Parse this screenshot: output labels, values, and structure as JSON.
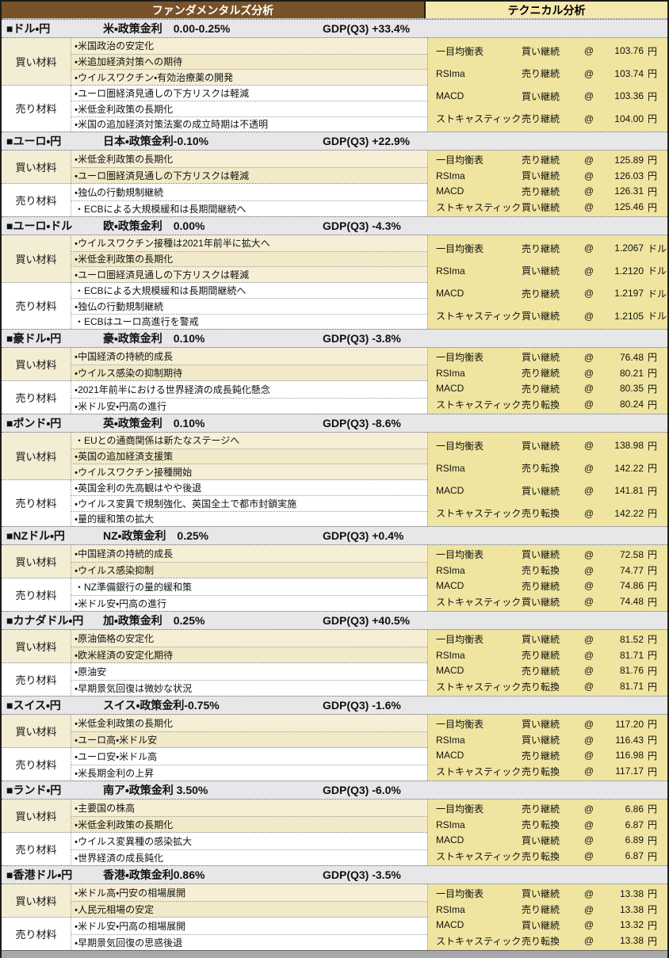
{
  "header": {
    "fundamentals": "ファンダメンタルズ分析",
    "technical": "テクニカル分析"
  },
  "labels": {
    "buy": "買い材料",
    "sell": "売り材料",
    "at": "@"
  },
  "colors": {
    "header_brown": "#7A5229",
    "header_yellow": "#F5E8AC",
    "tech_panel": "#F0E5A0",
    "buy_row": "#F6EFD6",
    "buy_row_alt": "#F1E9C7",
    "buy_label_bg": "#F3EDD4",
    "section_header_bg": "#E7E7E9"
  },
  "sections": [
    {
      "pair": "■ドル・円",
      "policy": "米・政策金利　0.00-0.25%",
      "gdp": "GDP(Q3) +33.4%",
      "buy": [
        "・米国政治の安定化",
        "・米追加経済対策への期待",
        "・ウイルスワクチン・有効治療薬の開発"
      ],
      "sell": [
        "・ユーロ圏経済見通しの下方リスクは軽減",
        "・米低金利政策の長期化",
        "・米国の追加経済対策法案の成立時期は不透明"
      ],
      "tech": [
        {
          "name": "一目均衡表",
          "signal": "買い継続",
          "price": "103.76",
          "unit": "円"
        },
        {
          "name": "RSIma",
          "signal": "売り継続",
          "price": "103.74",
          "unit": "円"
        },
        {
          "name": "MACD",
          "signal": "買い継続",
          "price": "103.36",
          "unit": "円"
        },
        {
          "name": "ストキャスティック",
          "signal": "売り継続",
          "price": "104.00",
          "unit": "円"
        }
      ]
    },
    {
      "pair": "■ユーロ・円",
      "policy": "日本・政策金利-0.10%",
      "gdp": "GDP(Q3) +22.9%",
      "buy": [
        "・米低金利政策の長期化",
        "・ユーロ圏経済見通しの下方リスクは軽減"
      ],
      "sell": [
        "・独仏の行動規制継続",
        "・ECBによる大規模緩和は長期間継続へ"
      ],
      "tech": [
        {
          "name": "一目均衡表",
          "signal": "売り継続",
          "price": "125.89",
          "unit": "円"
        },
        {
          "name": "RSIma",
          "signal": "買い継続",
          "price": "126.03",
          "unit": "円"
        },
        {
          "name": "MACD",
          "signal": "売り継続",
          "price": "126.31",
          "unit": "円"
        },
        {
          "name": "ストキャスティック",
          "signal": "買い継続",
          "price": "125.46",
          "unit": "円"
        }
      ]
    },
    {
      "pair": "■ユーロ・ドル",
      "policy": "欧・政策金利　0.00%",
      "gdp": "GDP(Q3) -4.3%",
      "buy": [
        "・ウイルスワクチン接種は2021年前半に拡大へ",
        "・米低金利政策の長期化",
        "・ユーロ圏経済見通しの下方リスクは軽減"
      ],
      "sell": [
        "・ECBによる大規模緩和は長期間継続へ",
        "・独仏の行動規制継続",
        "・ECBはユーロ高進行を警戒"
      ],
      "tech": [
        {
          "name": "一目均衡表",
          "signal": "売り継続",
          "price": "1.2067",
          "unit": "ドル"
        },
        {
          "name": "RSIma",
          "signal": "買い継続",
          "price": "1.2120",
          "unit": "ドル"
        },
        {
          "name": "MACD",
          "signal": "売り継続",
          "price": "1.2197",
          "unit": "ドル"
        },
        {
          "name": "ストキャスティック",
          "signal": "買い継続",
          "price": "1.2105",
          "unit": "ドル"
        }
      ]
    },
    {
      "pair": "■豪ドル・円",
      "policy": "豪・政策金利　0.10%",
      "gdp": "GDP(Q3) -3.8%",
      "buy": [
        "・中国経済の持続的成長",
        "・ウイルス感染の抑制期待"
      ],
      "sell": [
        "・2021年前半における世界経済の成長鈍化懸念",
        "・米ドル安・円高の進行"
      ],
      "tech": [
        {
          "name": "一目均衡表",
          "signal": "買い継続",
          "price": "76.48",
          "unit": "円"
        },
        {
          "name": "RSIma",
          "signal": "売り継続",
          "price": "80.21",
          "unit": "円"
        },
        {
          "name": "MACD",
          "signal": "売り継続",
          "price": "80.35",
          "unit": "円"
        },
        {
          "name": "ストキャスティック",
          "signal": "売り転換",
          "price": "80.24",
          "unit": "円"
        }
      ]
    },
    {
      "pair": "■ポンド・円",
      "policy": "英・政策金利　0.10%",
      "gdp": "GDP(Q3) -8.6%",
      "buy": [
        "・EUとの通商関係は新たなステージへ",
        "・英国の追加経済支援策",
        "・ウイルスワクチン接種開始"
      ],
      "sell": [
        "・英国金利の先高観はやや後退",
        "・ウイルス変異で規制強化、英国全土で都市封鎖実施",
        "・量的緩和策の拡大"
      ],
      "tech": [
        {
          "name": "一目均衡表",
          "signal": "買い継続",
          "price": "138.98",
          "unit": "円"
        },
        {
          "name": "RSIma",
          "signal": "売り転換",
          "price": "142.22",
          "unit": "円"
        },
        {
          "name": "MACD",
          "signal": "買い継続",
          "price": "141.81",
          "unit": "円"
        },
        {
          "name": "ストキャスティック",
          "signal": "売り転換",
          "price": "142.22",
          "unit": "円"
        }
      ]
    },
    {
      "pair": "■NZドル・円",
      "policy": "NZ・政策金利　0.25%",
      "gdp": "GDP(Q3) +0.4%",
      "buy": [
        "・中国経済の持続的成長",
        "・ウイルス感染抑制"
      ],
      "sell": [
        "・NZ準備銀行の量的緩和策",
        "・米ドル安・円高の進行"
      ],
      "tech": [
        {
          "name": "一目均衡表",
          "signal": "買い継続",
          "price": "72.58",
          "unit": "円"
        },
        {
          "name": "RSIma",
          "signal": "売り転換",
          "price": "74.77",
          "unit": "円"
        },
        {
          "name": "MACD",
          "signal": "売り継続",
          "price": "74.86",
          "unit": "円"
        },
        {
          "name": "ストキャスティック",
          "signal": "買い継続",
          "price": "74.48",
          "unit": "円"
        }
      ]
    },
    {
      "pair": "■カナダドル・円",
      "policy": "加・政策金利　0.25%",
      "gdp": "GDP(Q3) +40.5%",
      "buy": [
        "・原油価格の安定化",
        "・欧米経済の安定化期待"
      ],
      "sell": [
        "・原油安",
        "・早期景気回復は微妙な状況"
      ],
      "tech": [
        {
          "name": "一目均衡表",
          "signal": "買い継続",
          "price": "81.52",
          "unit": "円"
        },
        {
          "name": "RSIma",
          "signal": "売り継続",
          "price": "81.71",
          "unit": "円"
        },
        {
          "name": "MACD",
          "signal": "売り継続",
          "price": "81.76",
          "unit": "円"
        },
        {
          "name": "ストキャスティック",
          "signal": "売り転換",
          "price": "81.71",
          "unit": "円"
        }
      ]
    },
    {
      "pair": "■スイス・円",
      "policy": "スイス・政策金利-0.75%",
      "gdp": "GDP(Q3) -1.6%",
      "buy": [
        "・米低金利政策の長期化",
        "・ユーロ高・米ドル安"
      ],
      "sell": [
        "・ユーロ安・米ドル高",
        "・米長期金利の上昇"
      ],
      "tech": [
        {
          "name": "一目均衡表",
          "signal": "買い継続",
          "price": "117.20",
          "unit": "円"
        },
        {
          "name": "RSIma",
          "signal": "買い継続",
          "price": "116.43",
          "unit": "円"
        },
        {
          "name": "MACD",
          "signal": "売り継続",
          "price": "116.98",
          "unit": "円"
        },
        {
          "name": "ストキャスティック",
          "signal": "売り転換",
          "price": "117.17",
          "unit": "円"
        }
      ]
    },
    {
      "pair": "■ランド・円",
      "policy": "南ア・政策金利 3.50%",
      "gdp": "GDP(Q3) -6.0%",
      "buy": [
        "・主要国の株高",
        "・米低金利政策の長期化"
      ],
      "sell": [
        "・ウイルス変異種の感染拡大",
        "・世界経済の成長鈍化"
      ],
      "tech": [
        {
          "name": "一目均衡表",
          "signal": "売り継続",
          "price": "6.86",
          "unit": "円"
        },
        {
          "name": "RSIma",
          "signal": "売り転換",
          "price": "6.87",
          "unit": "円"
        },
        {
          "name": "MACD",
          "signal": "買い継続",
          "price": "6.89",
          "unit": "円"
        },
        {
          "name": "ストキャスティック",
          "signal": "売り転換",
          "price": "6.87",
          "unit": "円"
        }
      ]
    },
    {
      "pair": "■香港ドル・円",
      "policy": "香港・政策金利0.86%",
      "gdp": "GDP(Q3) -3.5%",
      "buy": [
        "・米ドル高・円安の相場展開",
        "・人民元相場の安定"
      ],
      "sell": [
        "・米ドル安・円高の相場展開",
        "・早期景気回復の思惑後退"
      ],
      "tech": [
        {
          "name": "一目均衡表",
          "signal": "買い継続",
          "price": "13.38",
          "unit": "円"
        },
        {
          "name": "RSIma",
          "signal": "売り継続",
          "price": "13.38",
          "unit": "円"
        },
        {
          "name": "MACD",
          "signal": "買い継続",
          "price": "13.32",
          "unit": "円"
        },
        {
          "name": "ストキャスティック",
          "signal": "売り転換",
          "price": "13.38",
          "unit": "円"
        }
      ]
    }
  ]
}
